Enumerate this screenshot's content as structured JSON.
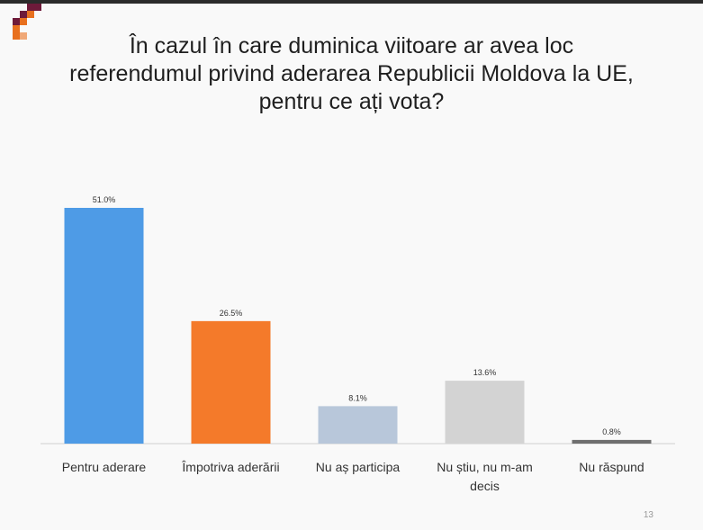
{
  "slide": {
    "title_lines": [
      "În cazul în care duminica viitoare ar avea loc",
      "referendumul privind aderarea Republicii Moldova la UE,",
      "pentru ce ați vota?"
    ],
    "page_number": "13"
  },
  "colors": {
    "logo_dark": "#6e1a3a",
    "logo_orange": "#e8701f",
    "logo_light": "#f0a877",
    "baseline": "#d0d0d0"
  },
  "chart_data": {
    "type": "bar",
    "categories": [
      "Pentru aderare",
      "Împotriva aderării",
      "Nu aș participa",
      "Nu știu, nu m-am decis",
      "Nu răspund"
    ],
    "category_label_lines": [
      [
        "Pentru aderare"
      ],
      [
        "Împotriva aderării"
      ],
      [
        "Nu aș participa"
      ],
      [
        "Nu știu, nu m-am",
        "decis"
      ],
      [
        "Nu răspund"
      ]
    ],
    "values": [
      51.0,
      26.5,
      8.1,
      13.6,
      0.8
    ],
    "data_labels": [
      "51.0%",
      "26.5%",
      "8.1%",
      "13.6%",
      "0.8%"
    ],
    "bar_colors": [
      "#4e9be6",
      "#f47a2a",
      "#b8c7da",
      "#d3d3d3",
      "#6f6f6f"
    ],
    "ylim": [
      0,
      51.0
    ],
    "grid": false,
    "legend": "none"
  }
}
